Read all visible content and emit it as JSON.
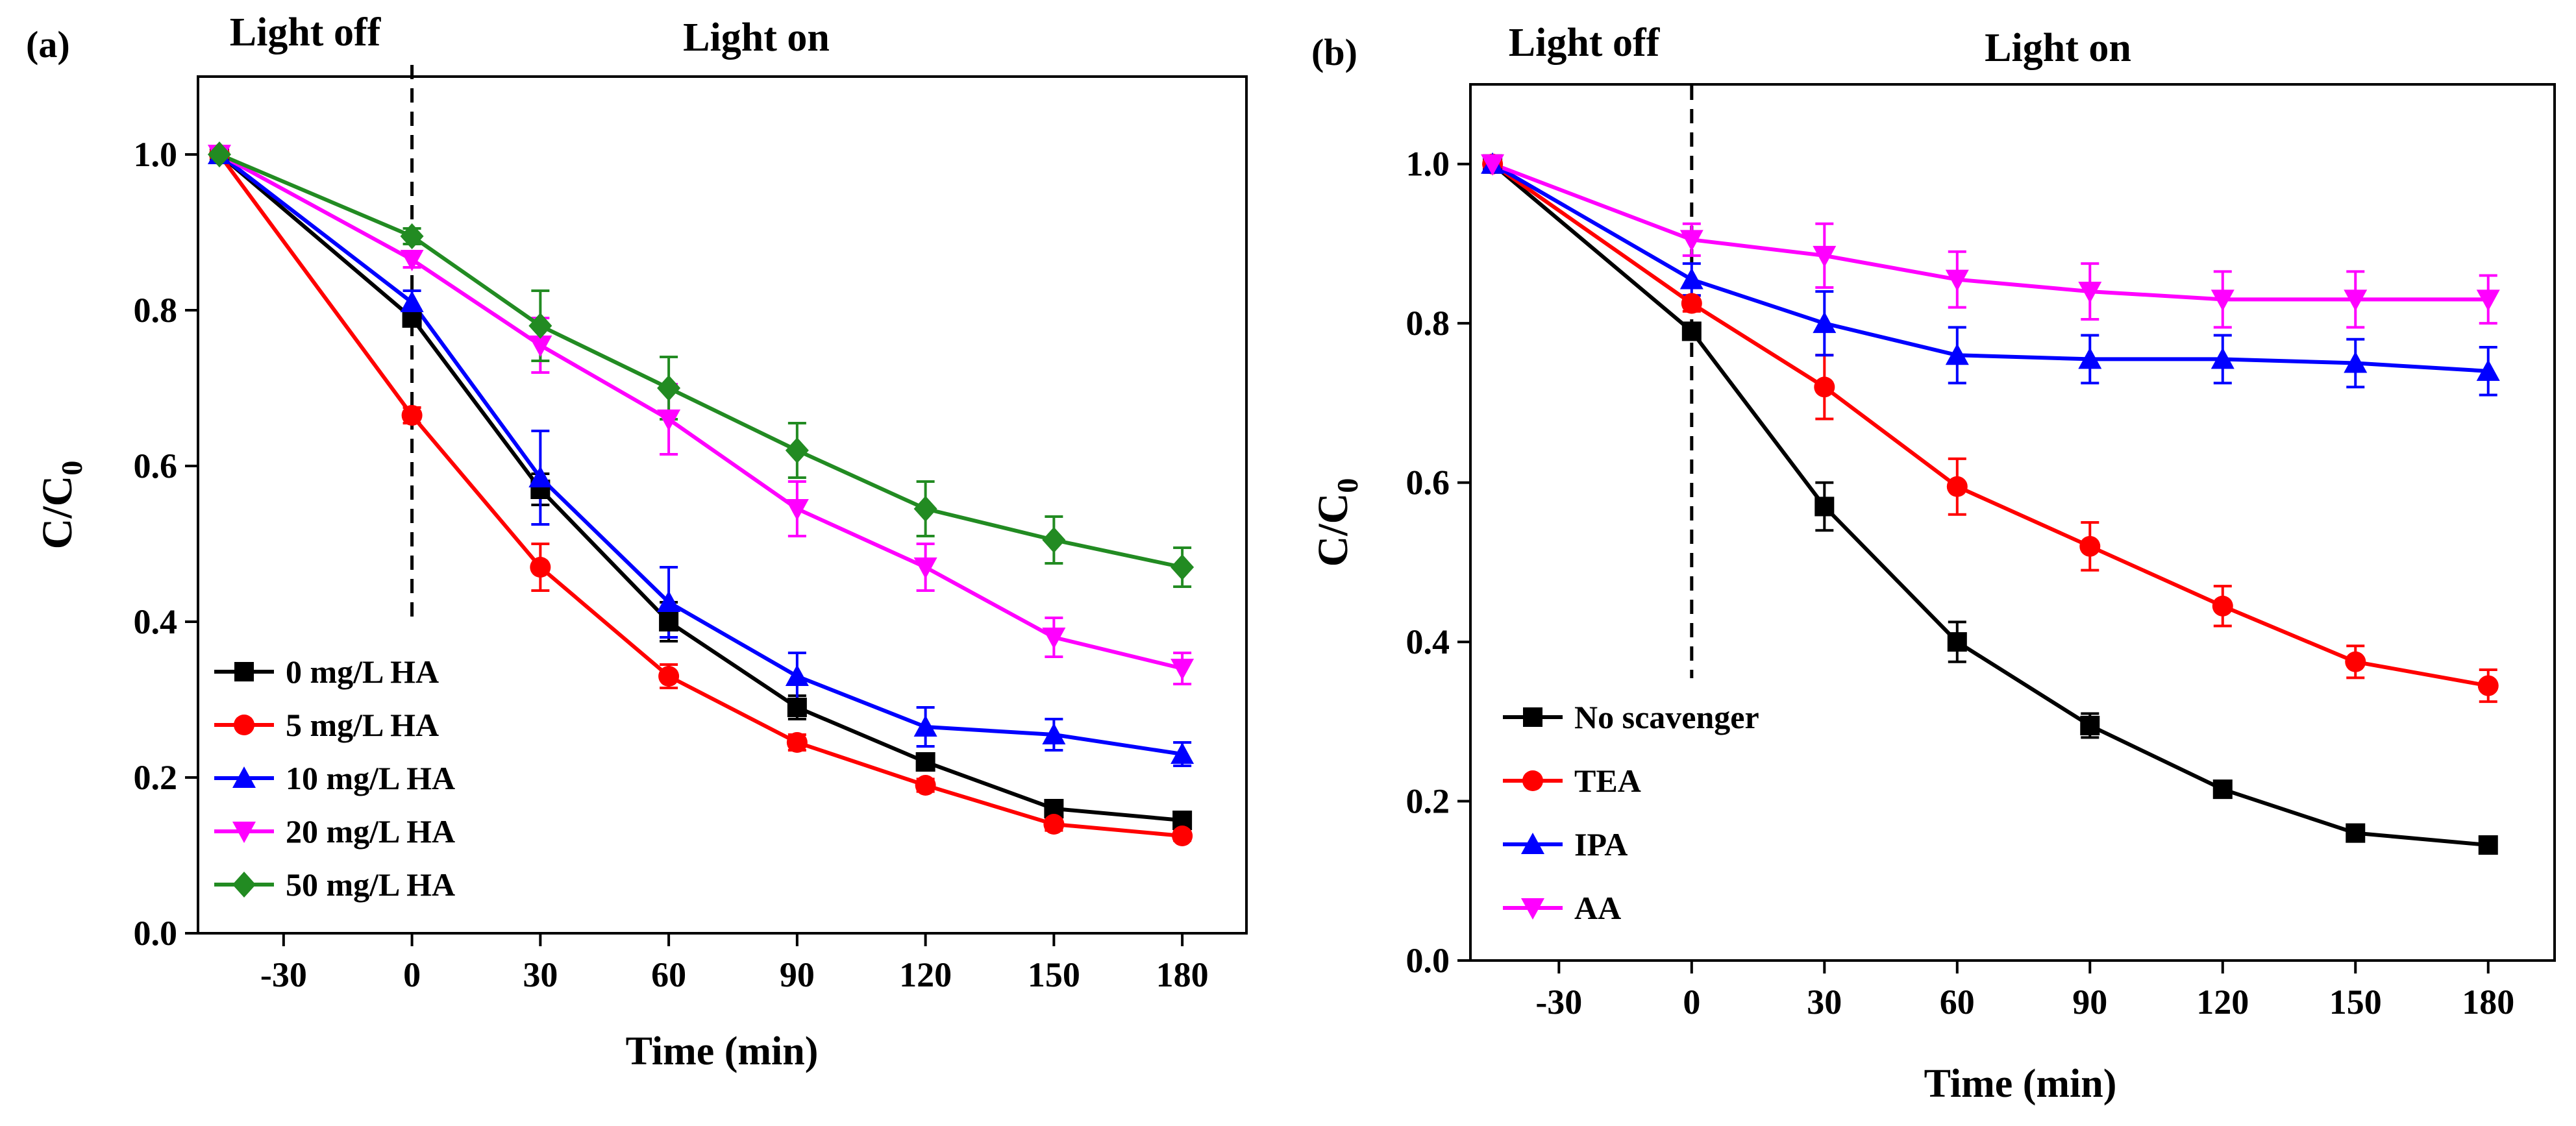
{
  "chart_data": [
    {
      "type": "line",
      "panel_label": "(a)",
      "phase_labels": {
        "dark": "Light off",
        "light": "Light on"
      },
      "xlabel": "Time (min)",
      "ylabel_main": "C/C",
      "ylabel_sub": "0",
      "xlim": [
        -50,
        195
      ],
      "ylim": [
        0,
        1.1
      ],
      "x_ticks": [
        -30,
        0,
        30,
        60,
        90,
        120,
        150,
        180
      ],
      "x_tick_labels": [
        "-30",
        "0",
        "30",
        "60",
        "90",
        "120",
        "150",
        "180"
      ],
      "y_ticks": [
        0,
        0.2,
        0.4,
        0.6,
        0.8,
        1.0
      ],
      "y_tick_labels": [
        "0.0",
        "0.2",
        "0.4",
        "0.6",
        "0.8",
        "1.0"
      ],
      "divider_x": 0,
      "x": [
        -45,
        0,
        30,
        60,
        90,
        120,
        150,
        180
      ],
      "legend_position": "lower-left",
      "series": [
        {
          "name": "0 mg/L HA",
          "color": "#000000",
          "marker": "square",
          "values": [
            1.0,
            0.79,
            0.57,
            0.4,
            0.29,
            0.22,
            0.16,
            0.145
          ],
          "errors": [
            0.0,
            0.01,
            0.02,
            0.025,
            0.015,
            0.01,
            0.008,
            0.006
          ]
        },
        {
          "name": "5 mg/L HA",
          "color": "#ff0000",
          "marker": "circle",
          "values": [
            1.0,
            0.665,
            0.47,
            0.33,
            0.245,
            0.19,
            0.14,
            0.125
          ],
          "errors": [
            0.0,
            0.01,
            0.03,
            0.015,
            0.01,
            0.008,
            0.008,
            0.006
          ]
        },
        {
          "name": "10 mg/L HA",
          "color": "#0000ff",
          "marker": "triangle-up",
          "values": [
            1.0,
            0.81,
            0.585,
            0.425,
            0.33,
            0.265,
            0.255,
            0.23
          ],
          "errors": [
            0.0,
            0.015,
            0.06,
            0.045,
            0.03,
            0.025,
            0.02,
            0.015
          ]
        },
        {
          "name": "20 mg/L HA",
          "color": "#ff00ff",
          "marker": "triangle-down",
          "values": [
            1.0,
            0.865,
            0.755,
            0.66,
            0.545,
            0.47,
            0.38,
            0.34
          ],
          "errors": [
            0.0,
            0.01,
            0.035,
            0.045,
            0.035,
            0.03,
            0.025,
            0.02
          ]
        },
        {
          "name": "50 mg/L HA",
          "color": "#228b22",
          "marker": "diamond",
          "values": [
            1.0,
            0.895,
            0.78,
            0.7,
            0.62,
            0.545,
            0.505,
            0.47
          ],
          "errors": [
            0.0,
            0.01,
            0.045,
            0.04,
            0.035,
            0.035,
            0.03,
            0.025
          ]
        }
      ]
    },
    {
      "type": "line",
      "panel_label": "(b)",
      "phase_labels": {
        "dark": "Light off",
        "light": "Light on"
      },
      "xlabel": "Time (min)",
      "ylabel_main": "C/C",
      "ylabel_sub": "0",
      "xlim": [
        -50,
        195
      ],
      "ylim": [
        0,
        1.1
      ],
      "x_ticks": [
        -30,
        0,
        30,
        60,
        90,
        120,
        150,
        180
      ],
      "x_tick_labels": [
        "-30",
        "0",
        "30",
        "60",
        "90",
        "120",
        "150",
        "180"
      ],
      "y_ticks": [
        0,
        0.2,
        0.4,
        0.6,
        0.8,
        1.0
      ],
      "y_tick_labels": [
        "0.0",
        "0.2",
        "0.4",
        "0.6",
        "0.8",
        "1.0"
      ],
      "divider_x": 0,
      "x": [
        -45,
        0,
        30,
        60,
        90,
        120,
        150,
        180
      ],
      "legend_position": "lower-left",
      "series": [
        {
          "name": "No scavenger",
          "color": "#000000",
          "marker": "square",
          "values": [
            1.0,
            0.79,
            0.57,
            0.4,
            0.295,
            0.215,
            0.16,
            0.145
          ],
          "errors": [
            0.0,
            0.01,
            0.03,
            0.025,
            0.015,
            0.01,
            0.008,
            0.006
          ]
        },
        {
          "name": "TEA",
          "color": "#ff0000",
          "marker": "circle",
          "values": [
            1.0,
            0.825,
            0.72,
            0.595,
            0.52,
            0.445,
            0.375,
            0.345
          ],
          "errors": [
            0.0,
            0.01,
            0.04,
            0.035,
            0.03,
            0.025,
            0.02,
            0.02
          ]
        },
        {
          "name": "IPA",
          "color": "#0000ff",
          "marker": "triangle-up",
          "values": [
            1.0,
            0.855,
            0.8,
            0.76,
            0.755,
            0.755,
            0.75,
            0.74
          ],
          "errors": [
            0.0,
            0.02,
            0.04,
            0.035,
            0.03,
            0.03,
            0.03,
            0.03
          ]
        },
        {
          "name": "AA",
          "color": "#ff00ff",
          "marker": "triangle-down",
          "values": [
            1.0,
            0.905,
            0.885,
            0.855,
            0.84,
            0.83,
            0.83,
            0.83
          ],
          "errors": [
            0.0,
            0.02,
            0.04,
            0.035,
            0.035,
            0.035,
            0.035,
            0.03
          ]
        }
      ]
    }
  ]
}
